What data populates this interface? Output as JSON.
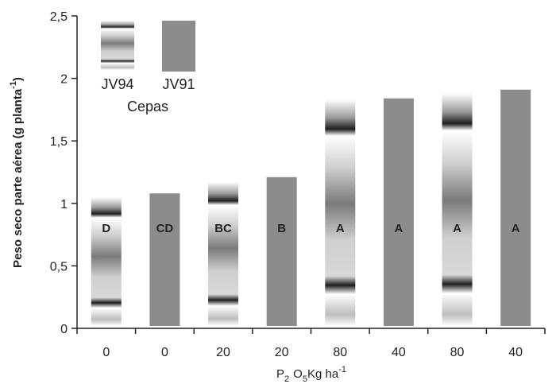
{
  "chart_data": {
    "type": "bar",
    "categories": [
      "0",
      "0",
      "20",
      "20",
      "80",
      "40",
      "80",
      "40"
    ],
    "values": [
      1.05,
      1.08,
      1.17,
      1.21,
      1.83,
      1.84,
      1.88,
      1.91
    ],
    "bar_labels": [
      "D",
      "CD",
      "BC",
      "B",
      "A",
      "A",
      "A",
      "A"
    ],
    "bar_series": [
      "JV94",
      "JV91",
      "JV94",
      "JV91",
      "JV94",
      "JV91",
      "JV94",
      "JV91"
    ],
    "xlabel": {
      "base": "P",
      "sub1": "2",
      "mid": "O",
      "sub2": "5",
      "unit": "Kg ha",
      "sup": "-1"
    },
    "ylabel": {
      "main": "Peso seco parte aérea (g planta",
      "sup": "-1",
      "close": ")"
    },
    "ylim": [
      0,
      2.5
    ],
    "yticks": [
      "0",
      "0,5",
      "1",
      "1,5",
      "2",
      "2,5"
    ],
    "ytick_values": [
      0,
      0.5,
      1,
      1.5,
      2,
      2.5
    ],
    "legend": {
      "title": "Cepas",
      "placement": "top-left",
      "entries": [
        {
          "name": "JV94",
          "style": "striped-gradient"
        },
        {
          "name": "JV91",
          "style": "solid",
          "color": "#8c8c8c"
        }
      ]
    },
    "grid": false
  },
  "colors": {
    "jv91": "#8c8c8c",
    "axis": "#222222",
    "stripe_dark": "#1e1e1e",
    "stripe_light": "#ffffff"
  }
}
